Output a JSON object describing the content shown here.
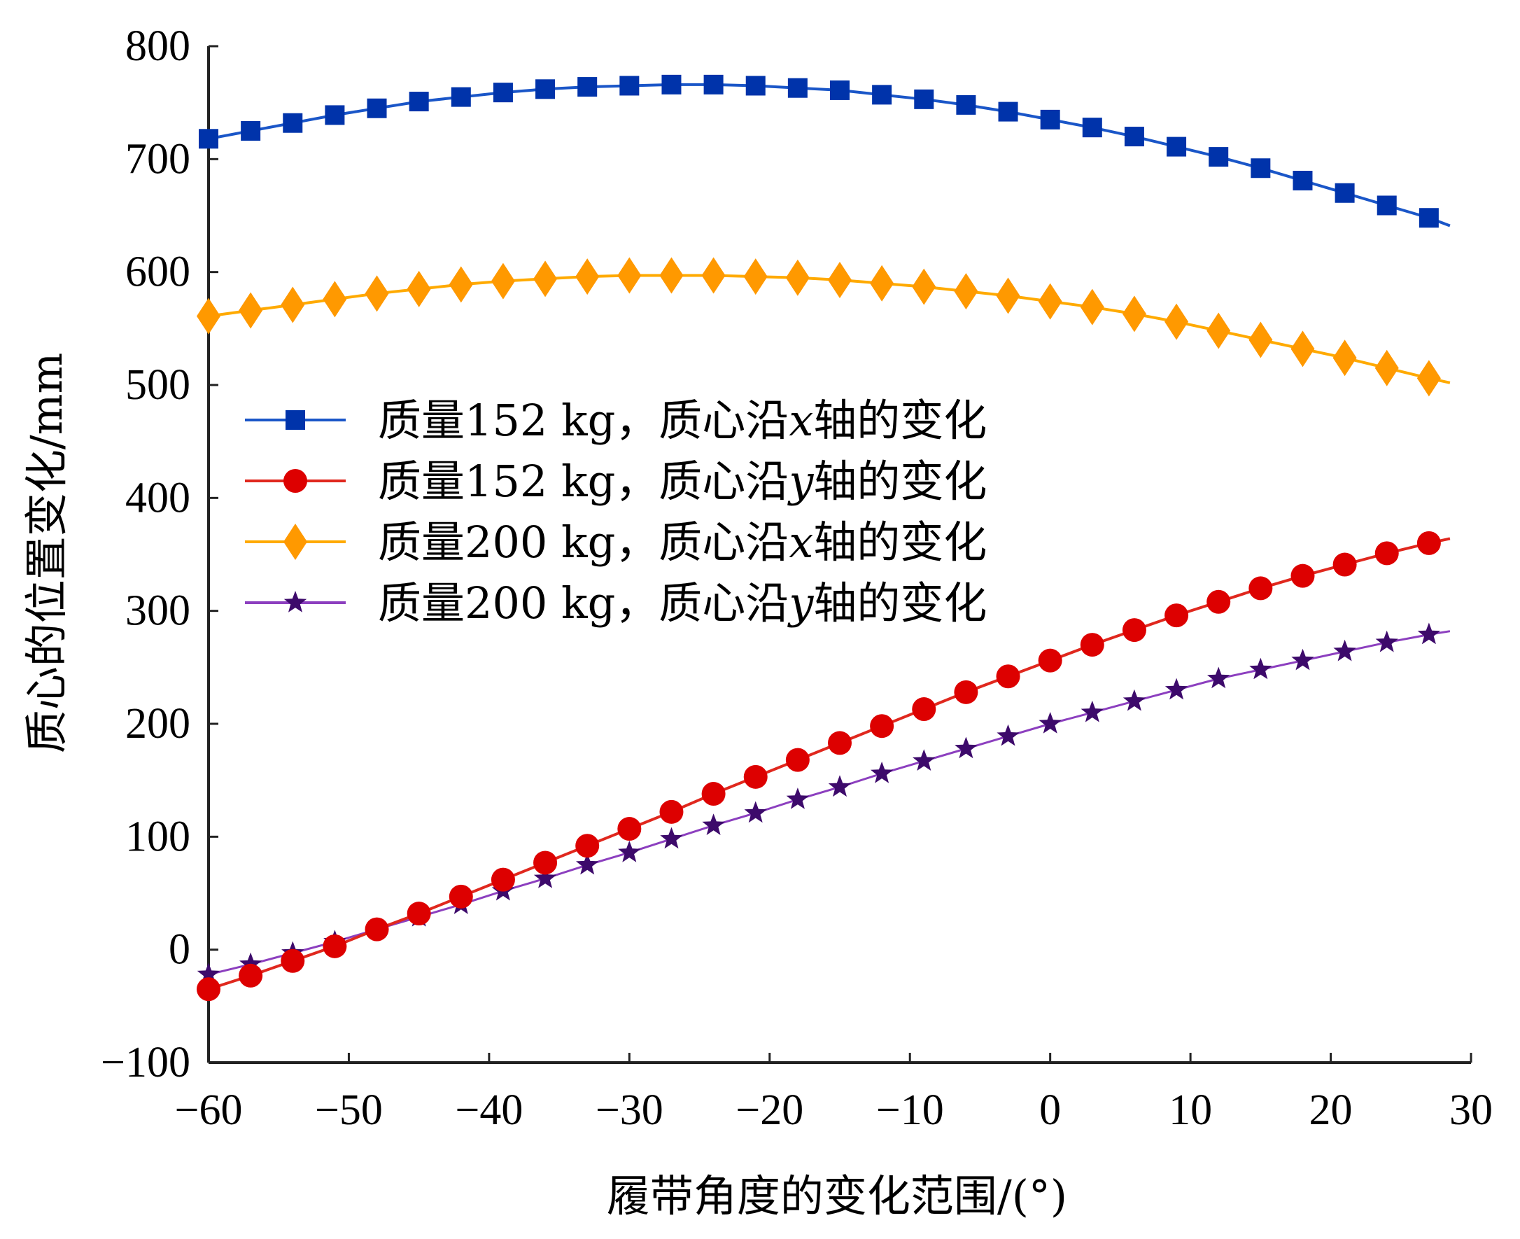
{
  "chart_data": {
    "type": "line",
    "title": "",
    "xlabel": "履带角度的变化范围/(°)",
    "ylabel": "质心的位置变化/mm",
    "xlim": [
      -60,
      30
    ],
    "ylim": [
      -100,
      800
    ],
    "xticks": [
      -60,
      -50,
      -40,
      -30,
      -20,
      -10,
      0,
      10,
      20,
      30
    ],
    "xtick_labels": [
      "−60",
      "−50",
      "−40",
      "−30",
      "−20",
      "−10",
      "0",
      "10",
      "20",
      "30"
    ],
    "yticks": [
      -100,
      0,
      100,
      200,
      300,
      400,
      500,
      600,
      700,
      800
    ],
    "ytick_labels": [
      "−100",
      "0",
      "100",
      "200",
      "300",
      "400",
      "500",
      "600",
      "700",
      "800"
    ],
    "grid": false,
    "legend_position": "center-left",
    "x": [
      -60,
      -57,
      -54,
      -51,
      -48,
      -45,
      -42,
      -39,
      -36,
      -33,
      -30,
      -27,
      -24,
      -21,
      -18,
      -15,
      -12,
      -9,
      -6,
      -3,
      0,
      3,
      6,
      9,
      12,
      15,
      18,
      21,
      24,
      27
    ],
    "line_end_x": 28.5,
    "series": [
      {
        "name": "质量152 kg，质心沿x轴的变化",
        "name_parts": [
          "质量152 kg，质心沿",
          "x",
          "轴的变化"
        ],
        "color": "#0033aa",
        "line_color": "#1a56c8",
        "marker": "square",
        "values": [
          718,
          725,
          732,
          739,
          745,
          751,
          755,
          759,
          762,
          764,
          765,
          766,
          766,
          765,
          763,
          761,
          757,
          753,
          748,
          742,
          735,
          728,
          720,
          711,
          702,
          692,
          681,
          670,
          659,
          648
        ],
        "end_value": 641
      },
      {
        "name": "质量152 kg，质心沿y轴的变化",
        "name_parts": [
          "质量152 kg，质心沿",
          "y",
          "轴的变化"
        ],
        "color": "#dd0000",
        "line_color": "#e0281e",
        "marker": "circle",
        "values": [
          -35,
          -23,
          -10,
          3,
          18,
          32,
          47,
          62,
          77,
          92,
          107,
          122,
          138,
          153,
          168,
          183,
          198,
          213,
          228,
          242,
          256,
          270,
          283,
          296,
          308,
          320,
          331,
          341,
          351,
          360
        ],
        "end_value": 364
      },
      {
        "name": "质量200 kg，质心沿x轴的变化",
        "name_parts": [
          "质量200 kg，质心沿",
          "x",
          "轴的变化"
        ],
        "color": "#ff9900",
        "line_color": "#ffaa00",
        "marker": "diamond",
        "values": [
          561,
          566,
          571,
          576,
          581,
          585,
          589,
          592,
          594,
          596,
          597,
          597,
          597,
          596,
          595,
          593,
          590,
          587,
          583,
          579,
          574,
          569,
          563,
          556,
          548,
          540,
          532,
          524,
          515,
          506
        ],
        "end_value": 502
      },
      {
        "name": "质量200 kg，质心沿y轴的变化",
        "name_parts": [
          "质量200 kg，质心沿",
          "y",
          "轴的变化"
        ],
        "color": "#3d0a6b",
        "line_color": "#8c3fbf",
        "marker": "star",
        "values": [
          -22,
          -13,
          -3,
          7,
          18,
          29,
          40,
          52,
          63,
          75,
          86,
          98,
          110,
          121,
          133,
          144,
          156,
          167,
          178,
          189,
          200,
          210,
          220,
          230,
          240,
          248,
          256,
          264,
          272,
          279
        ],
        "end_value": 282
      }
    ]
  }
}
